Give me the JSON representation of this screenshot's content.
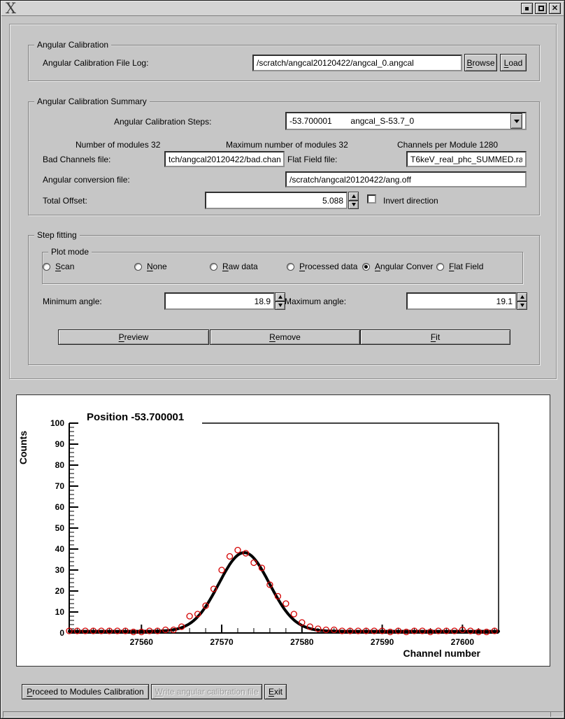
{
  "window": {
    "title": "",
    "logo_glyph": "X"
  },
  "angular_calibration": {
    "group_label": "Angular Calibration",
    "file_log_label": "Angular Calibration File Log:",
    "file_log_value": "/scratch/angcal20120422/angcal_0.angcal",
    "browse_label": "Browse",
    "load_label": "Load"
  },
  "summary": {
    "group_label": "Angular Calibration Summary",
    "steps_label": "Angular Calibration Steps:",
    "steps_value": "-53.700001        angcal_S-53.7_0",
    "num_modules": "Number of modules 32",
    "max_modules": "Maximum number of modules 32",
    "channels_per_module": "Channels per Module 1280",
    "bad_channels_label": "Bad Channels file:",
    "bad_channels_value": "tch/angcal20120422/bad.chan",
    "flat_field_label": "Flat Field file:",
    "flat_field_value": "T6keV_real_phc_SUMMED.raw",
    "ang_conv_label": "Angular conversion file:",
    "ang_conv_value": "/scratch/angcal20120422/ang.off",
    "total_offset_label": "Total Offset:",
    "total_offset_value": "5.088",
    "invert_label": "Invert direction",
    "invert_checked": false
  },
  "step_fitting": {
    "group_label": "Step fitting",
    "plot_mode_label": "Plot mode",
    "radios": [
      {
        "label": "None",
        "selected": false
      },
      {
        "label": "Raw data",
        "selected": false
      },
      {
        "label": "Processed data",
        "selected": false
      },
      {
        "label": "Angular Conver",
        "selected": true
      },
      {
        "label": "Flat Field",
        "selected": false
      },
      {
        "label": "Scan",
        "selected": false
      }
    ],
    "min_angle_label": "Minimum angle:",
    "min_angle_value": "18.9",
    "max_angle_label": "Maximum angle:",
    "max_angle_value": "19.1",
    "preview_label": "Preview",
    "remove_label": "Remove",
    "fit_label": "Fit"
  },
  "footer": {
    "proceed_label": "Proceed to Modules Calibration",
    "write_label": "Write angular calibration file",
    "write_enabled": false,
    "exit_label": "Exit"
  },
  "chart_data": {
    "type": "scatter",
    "title": "Position -53.700001",
    "xlabel": "Channel number",
    "ylabel": "Counts",
    "xlim": [
      27551,
      27604.5
    ],
    "ylim": [
      0,
      100
    ],
    "x_major_ticks": [
      27560,
      27570,
      27580,
      27590,
      27600
    ],
    "y_major_ticks": [
      0,
      10,
      20,
      30,
      40,
      50,
      60,
      70,
      80,
      90,
      100
    ],
    "x_minor_step": 2,
    "y_minor_step": 2,
    "grid": false,
    "legend": "none",
    "point_color": "#d40000",
    "fit_color": "#000000",
    "points": [
      [
        27551,
        1
      ],
      [
        27552,
        1
      ],
      [
        27553,
        1
      ],
      [
        27554,
        1
      ],
      [
        27555,
        1
      ],
      [
        27556,
        1
      ],
      [
        27557,
        1
      ],
      [
        27558,
        1
      ],
      [
        27559,
        0.5
      ],
      [
        27560,
        0.5
      ],
      [
        27561,
        1
      ],
      [
        27562,
        1
      ],
      [
        27563,
        1.5
      ],
      [
        27564,
        1.5
      ],
      [
        27565,
        3
      ],
      [
        27566,
        8
      ],
      [
        27567,
        9
      ],
      [
        27568,
        13
      ],
      [
        27569,
        21
      ],
      [
        27570,
        30
      ],
      [
        27571,
        36.5
      ],
      [
        27572,
        39.5
      ],
      [
        27573,
        38
      ],
      [
        27574,
        33.5
      ],
      [
        27575,
        31
      ],
      [
        27576,
        23
      ],
      [
        27577,
        17.5
      ],
      [
        27578,
        14
      ],
      [
        27579,
        9
      ],
      [
        27580,
        5
      ],
      [
        27581,
        3
      ],
      [
        27582,
        2
      ],
      [
        27583,
        1.5
      ],
      [
        27584,
        1.5
      ],
      [
        27585,
        1
      ],
      [
        27586,
        1
      ],
      [
        27587,
        1
      ],
      [
        27588,
        1
      ],
      [
        27589,
        1
      ],
      [
        27590,
        1
      ],
      [
        27591,
        0.5
      ],
      [
        27592,
        1
      ],
      [
        27593,
        0.5
      ],
      [
        27594,
        1
      ],
      [
        27595,
        1
      ],
      [
        27596,
        0.5
      ],
      [
        27597,
        1
      ],
      [
        27598,
        1
      ],
      [
        27599,
        1
      ],
      [
        27600,
        1.5
      ],
      [
        27601,
        1
      ],
      [
        27602,
        0.5
      ],
      [
        27603,
        0.5
      ],
      [
        27604,
        1
      ]
    ],
    "fit_gaussian": {
      "baseline": 0.8,
      "amplitude": 37.5,
      "center": 27572.8,
      "sigma": 3.15
    }
  }
}
